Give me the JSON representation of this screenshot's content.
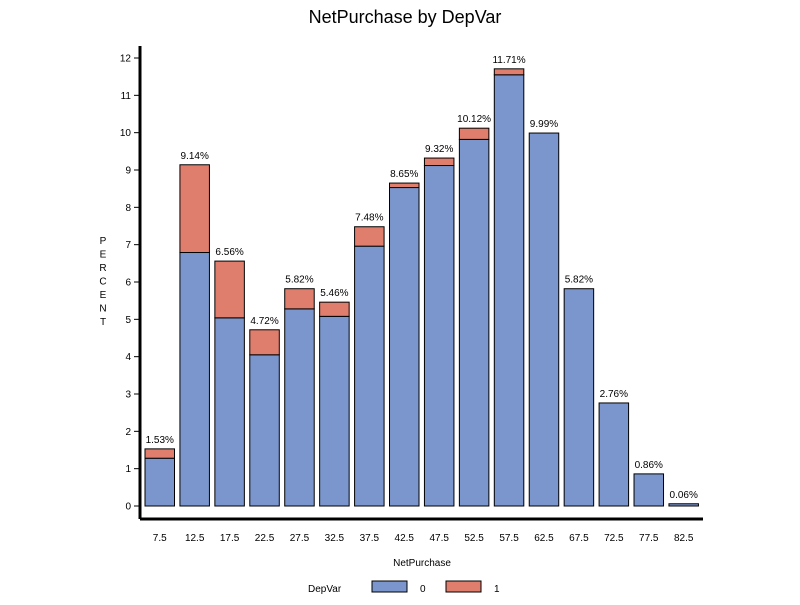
{
  "chart_data": {
    "type": "bar",
    "title": "NetPurchase by DepVar",
    "xlabel": "NetPurchase",
    "ylabel": "PERCENT",
    "ylim": [
      0,
      12
    ],
    "yticks": [
      "0",
      "1",
      "2",
      "3",
      "4",
      "5",
      "6",
      "7",
      "8",
      "9",
      "10",
      "11",
      "12"
    ],
    "categories": [
      "7.5",
      "12.5",
      "17.5",
      "22.5",
      "27.5",
      "32.5",
      "37.5",
      "42.5",
      "47.5",
      "52.5",
      "57.5",
      "62.5",
      "67.5",
      "72.5",
      "77.5",
      "82.5"
    ],
    "stacked": true,
    "series": [
      {
        "name": "0",
        "color": "#7b96cd",
        "values": [
          1.28,
          6.79,
          5.04,
          4.05,
          5.28,
          5.08,
          6.96,
          8.53,
          9.12,
          9.82,
          11.55,
          9.99,
          5.82,
          2.76,
          0.86,
          0.06
        ]
      },
      {
        "name": "1",
        "color": "#e07e6e",
        "values": [
          0.25,
          2.35,
          1.52,
          0.67,
          0.54,
          0.38,
          0.52,
          0.12,
          0.2,
          0.3,
          0.16,
          0,
          0,
          0,
          0,
          0
        ]
      }
    ],
    "data_labels": [
      "1.53%",
      "9.14%",
      "6.56%",
      "4.72%",
      "5.82%",
      "5.46%",
      "7.48%",
      "8.65%",
      "9.32%",
      "10.12%",
      "11.71%",
      "9.99%",
      "5.82%",
      "2.76%",
      "0.86%",
      "0.06%"
    ],
    "legend": {
      "title": "DepVar",
      "placement": "bottom",
      "items": [
        "0",
        "1"
      ]
    },
    "grid": false
  }
}
